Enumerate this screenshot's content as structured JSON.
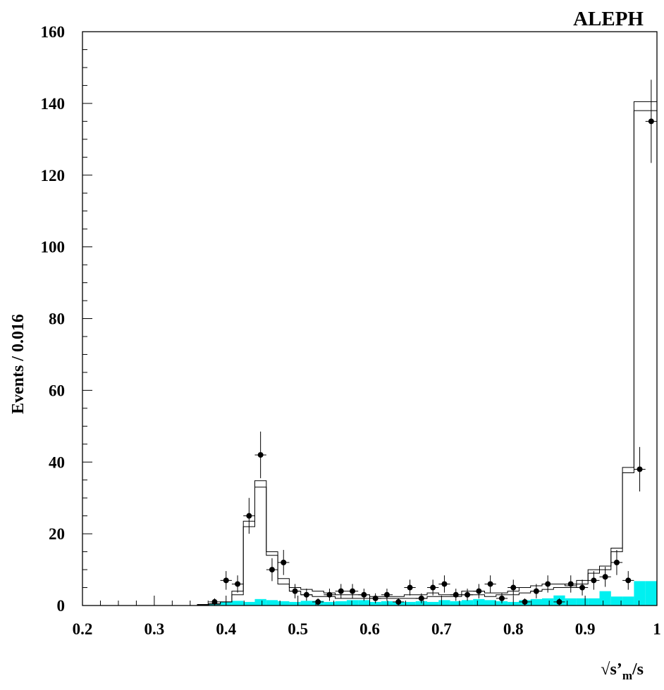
{
  "chart_data": {
    "type": "histogram",
    "title": "ALEPH",
    "xlabel_base": "√s’",
    "xlabel_sub": "m",
    "xlabel_tail": "/s",
    "ylabel": "Events / 0.016",
    "xlim": [
      0.2,
      1.0
    ],
    "ylim": [
      0,
      160
    ],
    "x_ticks": [
      0.2,
      0.3,
      0.4,
      0.5,
      0.6,
      0.7,
      0.8,
      0.9,
      1.0
    ],
    "x_tick_labels": [
      "0.2",
      "0.3",
      "0.4",
      "0.5",
      "0.6",
      "0.7",
      "0.8",
      "0.9",
      "1"
    ],
    "y_ticks": [
      0,
      20,
      40,
      60,
      80,
      100,
      120,
      140,
      160
    ],
    "y_tick_labels": [
      "0",
      "20",
      "40",
      "60",
      "80",
      "100",
      "120",
      "140",
      "160"
    ],
    "bin_width": 0.016,
    "bin_start": 0.2,
    "series": [
      {
        "role": "simulation",
        "style": "step",
        "values": [
          0,
          0,
          0,
          0,
          0,
          0,
          0,
          0,
          0,
          0,
          0.3,
          0.5,
          1.0,
          4.0,
          23.5,
          34.8,
          15.0,
          7.5,
          5.0,
          4.5,
          4.0,
          3.5,
          3.0,
          3.0,
          3.0,
          2.5,
          2.5,
          2.5,
          3.0,
          3.0,
          3.5,
          3.0,
          3.0,
          4.0,
          4.0,
          3.5,
          3.5,
          4.0,
          5.0,
          5.5,
          6.0,
          6.0,
          5.5,
          7.0,
          10.0,
          11.0,
          16.0,
          38.5,
          140.5,
          140.5
        ]
      },
      {
        "role": "simulation",
        "style": "step",
        "values": [
          0,
          0,
          0,
          0,
          0,
          0,
          0,
          0,
          0,
          0,
          0.2,
          0.4,
          1.0,
          3.0,
          22.0,
          33.0,
          14.0,
          6.0,
          4.0,
          3.0,
          2.5,
          2.5,
          2.0,
          2.0,
          2.0,
          2.0,
          2.0,
          2.0,
          2.0,
          2.0,
          2.5,
          2.5,
          2.5,
          3.0,
          3.0,
          2.5,
          3.0,
          3.0,
          3.5,
          4.0,
          4.5,
          5.0,
          5.0,
          6.0,
          9.0,
          10.0,
          15.0,
          37.0,
          138.0,
          138.0
        ]
      },
      {
        "role": "background",
        "style": "filled",
        "color": "#00f0f0",
        "values": [
          0,
          0,
          0,
          0,
          0,
          0,
          0,
          0,
          0,
          0,
          0,
          0.5,
          1.0,
          1.3,
          1.0,
          1.8,
          1.5,
          1.2,
          1.0,
          1.3,
          1.3,
          1.0,
          1.2,
          1.5,
          1.5,
          1.0,
          1.2,
          1.0,
          1.0,
          1.2,
          1.0,
          1.5,
          1.2,
          1.5,
          1.8,
          1.5,
          1.2,
          1.0,
          1.5,
          1.8,
          2.0,
          2.8,
          2.0,
          2.0,
          2.0,
          4.0,
          2.5,
          2.5,
          6.8,
          6.8
        ]
      }
    ],
    "data_points": {
      "x": [
        0.384,
        0.4,
        0.416,
        0.432,
        0.448,
        0.464,
        0.48,
        0.496,
        0.512,
        0.528,
        0.544,
        0.56,
        0.576,
        0.592,
        0.608,
        0.624,
        0.64,
        0.656,
        0.672,
        0.688,
        0.704,
        0.72,
        0.736,
        0.752,
        0.768,
        0.784,
        0.8,
        0.816,
        0.832,
        0.848,
        0.864,
        0.88,
        0.896,
        0.912,
        0.928,
        0.944,
        0.96,
        0.976,
        0.992
      ],
      "y": [
        1,
        7,
        6,
        25,
        42,
        10,
        12,
        4,
        3,
        1,
        3,
        4,
        4,
        3,
        2,
        3,
        1,
        5,
        2,
        5,
        6,
        3,
        3,
        4,
        6,
        2,
        5,
        1,
        4,
        6,
        1,
        6,
        5,
        7,
        8,
        12,
        7,
        38,
        135
      ],
      "yerr": [
        1,
        2.6,
        2.4,
        5,
        6.5,
        3.2,
        3.5,
        2,
        1.7,
        1,
        1.7,
        2,
        2,
        1.7,
        1.4,
        1.7,
        1,
        2.2,
        1.4,
        2.2,
        2.4,
        1.7,
        1.7,
        2,
        2.4,
        1.4,
        2.2,
        1,
        2,
        2.4,
        1,
        2.4,
        2.2,
        2.6,
        2.8,
        3.5,
        2.6,
        6.2,
        11.6
      ]
    }
  }
}
